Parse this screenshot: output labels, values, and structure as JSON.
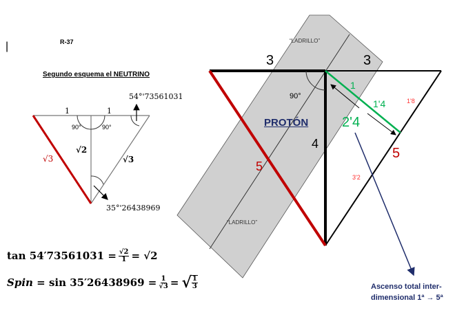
{
  "header": {
    "code": "R-37",
    "cursor": "|"
  },
  "neutrino": {
    "title": "Segundo esquema el NEUTRINO",
    "side_left_top": "1",
    "side_right_top": "1",
    "angle_left": "90°",
    "angle_right": "90°",
    "vertical": "√2",
    "left_side": "√3",
    "right_side": "√3",
    "angle_top": "54°'73561031",
    "angle_bottom": "35°'26438969"
  },
  "proton": {
    "label": "PROTÓN",
    "top_left": "3",
    "top_right": "3",
    "vertical": "4",
    "hypotenuse": "5",
    "right_side": "5",
    "angle": "90°",
    "green_1": "1",
    "green_14": "1'4",
    "green_24": "2'4",
    "red_18": "1'8",
    "red_32": "3'2",
    "brick_top": "“LADRILLO”",
    "brick_bottom": "“LADRILLO”",
    "ascent": [
      "Ascenso total inter-",
      "dimensional 1ª → 5ª"
    ]
  },
  "formulas": {
    "tan_lhs": "tan 54′73561031 =",
    "tan_num": "√2",
    "tan_den": "1",
    "tan_rhs": "= √2",
    "spin_label": "Spin",
    "spin_mid": " = sin 35′26438969 =",
    "spin_num": "1",
    "spin_den": "√3",
    "spin_eq": "=",
    "spin_rnum": "1",
    "spin_rden": "3"
  },
  "colors": {
    "red": "#c00000",
    "green": "#00b050",
    "navy": "#1f2d6b",
    "band": "#d0d0d0"
  }
}
